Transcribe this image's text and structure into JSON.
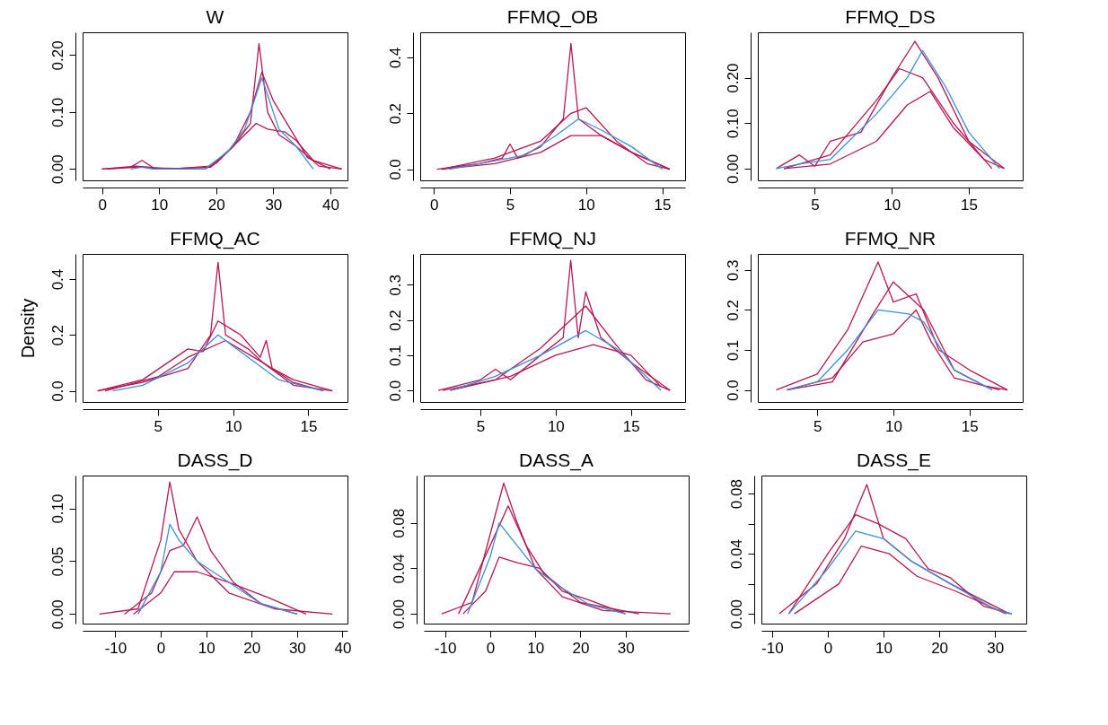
{
  "chart_data": [
    {
      "type": "line",
      "title": "W",
      "xlim": [
        -3.4,
        43
      ],
      "xticks": [
        0,
        10,
        20,
        30,
        40
      ],
      "ylim": [
        -0.02,
        0.24
      ],
      "yticks": [
        {
          "value": 0,
          "label": "0.00"
        },
        {
          "value": 0.1,
          "label": "0.10"
        },
        {
          "value": 0.2,
          "label": "0.20"
        }
      ],
      "series": [
        {
          "color": "#b5174f",
          "x": [
            0,
            5,
            7,
            9,
            18,
            20,
            23,
            26,
            27.5,
            29,
            31,
            34,
            38,
            42
          ],
          "values": [
            0,
            0.003,
            0.015,
            0.002,
            0,
            0.01,
            0.04,
            0.08,
            0.22,
            0.1,
            0.06,
            0.04,
            0.005,
            0
          ]
        },
        {
          "color": "#b5174f",
          "x": [
            0,
            6,
            10,
            19,
            22,
            25,
            27,
            29,
            32,
            34,
            37,
            42
          ],
          "values": [
            0,
            0.005,
            0,
            0.003,
            0.03,
            0.06,
            0.08,
            0.07,
            0.065,
            0.05,
            0.015,
            0
          ]
        },
        {
          "color": "#b5174f",
          "x": [
            1,
            7,
            12,
            19,
            23,
            26,
            28,
            30,
            33,
            36,
            40
          ],
          "values": [
            0,
            0.004,
            0,
            0.005,
            0.04,
            0.1,
            0.17,
            0.12,
            0.07,
            0.02,
            0
          ]
        },
        {
          "color": "#3b8ed8",
          "x": [
            5,
            7,
            9,
            18,
            22,
            25,
            28,
            31,
            34,
            37
          ],
          "values": [
            0,
            0.003,
            0,
            0,
            0.03,
            0.07,
            0.16,
            0.07,
            0.04,
            0
          ]
        }
      ]
    },
    {
      "type": "line",
      "title": "FFMQ_OB",
      "xlim": [
        -0.9,
        16.5
      ],
      "xticks": [
        0,
        5,
        10,
        15
      ],
      "ylim": [
        -0.04,
        0.49
      ],
      "yticks": [
        {
          "value": 0,
          "label": "0.0"
        },
        {
          "value": 0.2,
          "label": "0.2"
        },
        {
          "value": 0.4,
          "label": "0.4"
        }
      ],
      "series": [
        {
          "color": "#b5174f",
          "x": [
            0.2,
            3,
            4.5,
            5,
            5.5,
            7,
            8.5,
            9,
            9.5,
            11,
            13,
            15.5
          ],
          "values": [
            0,
            0.02,
            0.04,
            0.09,
            0.04,
            0.08,
            0.18,
            0.45,
            0.18,
            0.12,
            0.06,
            0
          ]
        },
        {
          "color": "#b5174f",
          "x": [
            0.5,
            4,
            7,
            9,
            10,
            12,
            14,
            15.5
          ],
          "values": [
            0,
            0.04,
            0.1,
            0.2,
            0.22,
            0.1,
            0.02,
            0
          ]
        },
        {
          "color": "#b5174f",
          "x": [
            0.5,
            4,
            7,
            9,
            11,
            13,
            15.5
          ],
          "values": [
            0,
            0.02,
            0.06,
            0.12,
            0.12,
            0.06,
            0
          ]
        },
        {
          "color": "#3b8ed8",
          "x": [
            1,
            3,
            6,
            8,
            9.5,
            11,
            13,
            15
          ],
          "values": [
            0,
            0.02,
            0.05,
            0.12,
            0.18,
            0.14,
            0.08,
            0
          ]
        }
      ]
    },
    {
      "type": "line",
      "title": "FFMQ_DS",
      "xlim": [
        1.3,
        18.5
      ],
      "xticks": [
        5,
        10,
        15
      ],
      "ylim": [
        -0.026,
        0.3
      ],
      "yticks": [
        {
          "value": 0,
          "label": "0.00"
        },
        {
          "value": 0.1,
          "label": "0.10"
        },
        {
          "value": 0.2,
          "label": "0.20"
        }
      ],
      "series": [
        {
          "color": "#b5174f",
          "x": [
            2.5,
            4,
            5,
            6,
            8,
            10,
            11.5,
            13,
            15,
            17.3
          ],
          "values": [
            0,
            0.03,
            0.005,
            0.06,
            0.08,
            0.2,
            0.28,
            0.2,
            0.06,
            0
          ]
        },
        {
          "color": "#b5174f",
          "x": [
            3,
            6,
            9,
            10.5,
            12,
            14,
            16.5
          ],
          "values": [
            0,
            0.03,
            0.15,
            0.22,
            0.2,
            0.1,
            0
          ]
        },
        {
          "color": "#b5174f",
          "x": [
            3,
            6,
            9,
            11,
            12.5,
            14,
            16,
            17.3
          ],
          "values": [
            0,
            0.01,
            0.06,
            0.14,
            0.17,
            0.09,
            0.02,
            0
          ]
        },
        {
          "color": "#3b8ed8",
          "x": [
            2.5,
            4,
            6,
            9,
            11,
            12,
            13.5,
            15,
            17
          ],
          "values": [
            0,
            0.01,
            0.02,
            0.12,
            0.2,
            0.26,
            0.18,
            0.08,
            0
          ]
        }
      ]
    },
    {
      "type": "line",
      "title": "FFMQ_AC",
      "ylabel": "Density",
      "xlim": [
        0,
        17.6
      ],
      "xticks": [
        5,
        10,
        15
      ],
      "ylim": [
        -0.04,
        0.49
      ],
      "yticks": [
        {
          "value": 0,
          "label": "0.0"
        },
        {
          "value": 0.2,
          "label": "0.2"
        },
        {
          "value": 0.4,
          "label": "0.4"
        }
      ],
      "series": [
        {
          "color": "#b5174f",
          "x": [
            1,
            4,
            7,
            8.5,
            9,
            9.5,
            11,
            12,
            14,
            16.6
          ],
          "values": [
            0,
            0.03,
            0.08,
            0.2,
            0.46,
            0.2,
            0.15,
            0.1,
            0.02,
            0
          ]
        },
        {
          "color": "#b5174f",
          "x": [
            1,
            4,
            7,
            8,
            9,
            10.5,
            11.8,
            12.2,
            12.6,
            14,
            16.6
          ],
          "values": [
            0,
            0.04,
            0.15,
            0.14,
            0.25,
            0.2,
            0.12,
            0.18,
            0.08,
            0.04,
            0
          ]
        },
        {
          "color": "#b5174f",
          "x": [
            1.5,
            5,
            7,
            9.5,
            12,
            14,
            16
          ],
          "values": [
            0,
            0.05,
            0.12,
            0.18,
            0.1,
            0.03,
            0
          ]
        },
        {
          "color": "#3b8ed8",
          "x": [
            2,
            4,
            7,
            9,
            11,
            13,
            16
          ],
          "values": [
            0,
            0.02,
            0.1,
            0.2,
            0.12,
            0.04,
            0
          ]
        }
      ]
    },
    {
      "type": "line",
      "title": "FFMQ_NJ",
      "xlim": [
        1,
        18.6
      ],
      "xticks": [
        5,
        10,
        15
      ],
      "ylim": [
        -0.033,
        0.388
      ],
      "yticks": [
        {
          "value": 0,
          "label": "0.0"
        },
        {
          "value": 0.1,
          "label": "0.1"
        },
        {
          "value": 0.2,
          "label": "0.2"
        },
        {
          "value": 0.3,
          "label": "0.3"
        }
      ],
      "series": [
        {
          "color": "#b5174f",
          "x": [
            2.2,
            5,
            6,
            7,
            9,
            10.5,
            11,
            11.5,
            12,
            13,
            15,
            17.6
          ],
          "values": [
            0,
            0.03,
            0.06,
            0.03,
            0.1,
            0.15,
            0.37,
            0.15,
            0.28,
            0.15,
            0.08,
            0
          ]
        },
        {
          "color": "#b5174f",
          "x": [
            2.5,
            6,
            9,
            12,
            14,
            16,
            17.6
          ],
          "values": [
            0,
            0.03,
            0.12,
            0.24,
            0.13,
            0.03,
            0
          ]
        },
        {
          "color": "#b5174f",
          "x": [
            3,
            7,
            10,
            12.5,
            15,
            17
          ],
          "values": [
            0,
            0.04,
            0.1,
            0.13,
            0.1,
            0.01
          ]
        },
        {
          "color": "#3b8ed8",
          "x": [
            3,
            6,
            9,
            12,
            14,
            17
          ],
          "values": [
            0,
            0.04,
            0.1,
            0.17,
            0.12,
            0
          ]
        }
      ]
    },
    {
      "type": "line",
      "title": "FFMQ_NR",
      "xlim": [
        1.1,
        18.5
      ],
      "xticks": [
        5,
        10,
        15
      ],
      "ylim": [
        -0.03,
        0.34
      ],
      "yticks": [
        {
          "value": 0,
          "label": "0.0"
        },
        {
          "value": 0.1,
          "label": "0.1"
        },
        {
          "value": 0.2,
          "label": "0.2"
        },
        {
          "value": 0.3,
          "label": "0.3"
        }
      ],
      "series": [
        {
          "color": "#b5174f",
          "x": [
            2.3,
            5,
            7,
            9,
            10,
            11.5,
            13,
            15,
            17.5
          ],
          "values": [
            0,
            0.04,
            0.15,
            0.32,
            0.22,
            0.24,
            0.1,
            0.05,
            0
          ]
        },
        {
          "color": "#b5174f",
          "x": [
            3,
            6,
            8,
            10,
            11.5,
            12.5,
            14,
            17
          ],
          "values": [
            0,
            0.03,
            0.12,
            0.14,
            0.2,
            0.12,
            0.03,
            0
          ]
        },
        {
          "color": "#b5174f",
          "x": [
            3,
            6,
            8.5,
            10,
            12,
            14,
            16,
            17.5
          ],
          "values": [
            0,
            0.02,
            0.18,
            0.27,
            0.2,
            0.05,
            0.01,
            0
          ]
        },
        {
          "color": "#3b8ed8",
          "x": [
            3,
            5,
            7,
            9,
            11,
            12,
            14,
            16.5
          ],
          "values": [
            0,
            0.02,
            0.1,
            0.2,
            0.19,
            0.17,
            0.05,
            0
          ]
        }
      ]
    },
    {
      "type": "line",
      "title": "DASS_D",
      "xlim": [
        -17.2,
        41.1
      ],
      "xticks": [
        -10,
        0,
        10,
        20,
        30,
        40
      ],
      "ylim": [
        -0.009,
        0.131
      ],
      "yticks": [
        {
          "value": 0,
          "label": "0.00"
        },
        {
          "value": 0.05,
          "label": "0.05"
        },
        {
          "value": 0.1,
          "label": "0.10"
        }
      ],
      "series": [
        {
          "color": "#b5174f",
          "x": [
            -13.5,
            -5,
            0,
            2,
            4,
            8,
            15,
            25,
            37.8
          ],
          "values": [
            0,
            0.005,
            0.07,
            0.125,
            0.08,
            0.05,
            0.02,
            0.005,
            0
          ]
        },
        {
          "color": "#b5174f",
          "x": [
            -8,
            -2,
            2,
            5,
            8,
            11,
            16,
            22,
            30
          ],
          "values": [
            0,
            0.02,
            0.06,
            0.065,
            0.092,
            0.06,
            0.03,
            0.01,
            0
          ]
        },
        {
          "color": "#b5174f",
          "x": [
            -6,
            0,
            3,
            8,
            15,
            24,
            32
          ],
          "values": [
            0,
            0.02,
            0.04,
            0.04,
            0.03,
            0.015,
            0
          ]
        },
        {
          "color": "#3b8ed8",
          "x": [
            -5,
            0,
            2,
            4,
            8,
            15,
            22,
            30
          ],
          "values": [
            0,
            0.04,
            0.085,
            0.07,
            0.05,
            0.03,
            0.01,
            0
          ]
        }
      ]
    },
    {
      "type": "line",
      "title": "DASS_A",
      "xlim": [
        -14.7,
        44
      ],
      "xticks": [
        -10,
        0,
        10,
        20,
        30
      ],
      "ylim": [
        -0.0086,
        0.1217
      ],
      "yticks": [
        {
          "value": 0,
          "label": "0.00"
        },
        {
          "value": 0.04,
          "label": "0.04"
        },
        {
          "value": 0.08,
          "label": "0.08"
        }
      ],
      "series": [
        {
          "color": "#b5174f",
          "x": [
            -10.7,
            -4,
            0,
            3,
            6,
            10,
            16,
            25,
            40
          ],
          "values": [
            0,
            0.01,
            0.07,
            0.115,
            0.08,
            0.04,
            0.015,
            0.003,
            0
          ]
        },
        {
          "color": "#b5174f",
          "x": [
            -6,
            -1,
            2,
            6,
            11,
            16,
            22,
            30
          ],
          "values": [
            0,
            0.02,
            0.05,
            0.045,
            0.04,
            0.02,
            0.012,
            0
          ]
        },
        {
          "color": "#b5174f",
          "x": [
            -7,
            0,
            4,
            8,
            12,
            20,
            33
          ],
          "values": [
            0,
            0.06,
            0.095,
            0.06,
            0.035,
            0.01,
            0
          ]
        },
        {
          "color": "#3b8ed8",
          "x": [
            -5,
            0,
            2,
            5,
            10,
            15,
            22,
            30
          ],
          "values": [
            0,
            0.05,
            0.08,
            0.065,
            0.04,
            0.025,
            0.008,
            0
          ]
        }
      ]
    },
    {
      "type": "line",
      "title": "DASS_E",
      "xlim": [
        -11.9,
        35.6
      ],
      "xticks": [
        -10,
        0,
        10,
        20,
        30
      ],
      "ylim": [
        -0.0065,
        0.092
      ],
      "yticks": [
        {
          "value": 0,
          "label": "0.00"
        },
        {
          "value": 0.02,
          "label": null
        },
        {
          "value": 0.04,
          "label": "0.04"
        },
        {
          "value": 0.06,
          "label": null
        },
        {
          "value": 0.08,
          "label": "0.08"
        }
      ],
      "series": [
        {
          "color": "#b5174f",
          "x": [
            -8.7,
            -2,
            3,
            7,
            10,
            15,
            22,
            32.6
          ],
          "values": [
            0,
            0.02,
            0.05,
            0.086,
            0.05,
            0.035,
            0.02,
            0
          ]
        },
        {
          "color": "#b5174f",
          "x": [
            -7,
            0,
            5,
            9,
            14,
            18,
            22,
            28,
            33
          ],
          "values": [
            0,
            0.04,
            0.066,
            0.06,
            0.05,
            0.03,
            0.024,
            0.005,
            0
          ]
        },
        {
          "color": "#b5174f",
          "x": [
            -6,
            2,
            6,
            11,
            16,
            23,
            32
          ],
          "values": [
            0,
            0.02,
            0.045,
            0.04,
            0.025,
            0.015,
            0
          ]
        },
        {
          "color": "#3b8ed8",
          "x": [
            -7,
            0,
            5,
            10,
            15,
            22,
            30,
            33
          ],
          "values": [
            0,
            0.03,
            0.055,
            0.05,
            0.035,
            0.02,
            0.003,
            0
          ]
        }
      ]
    }
  ]
}
